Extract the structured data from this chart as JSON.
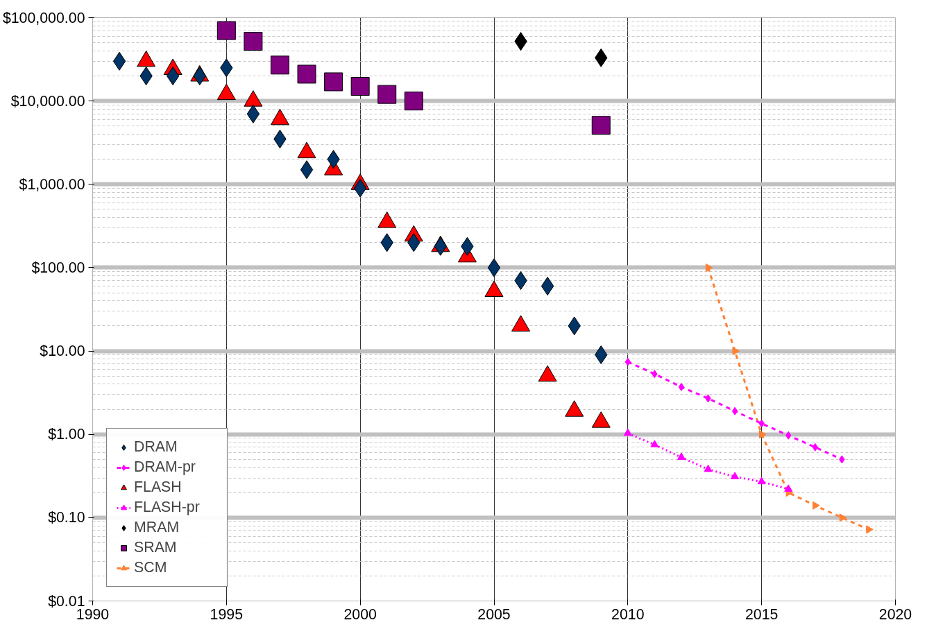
{
  "chart_data": {
    "type": "scatter",
    "log": "y",
    "grid": true,
    "legend": "bottom left",
    "xlim": [
      1990,
      2020
    ],
    "xticks": [
      1990,
      1995,
      2000,
      2005,
      2010,
      2015,
      2020
    ],
    "ylim": [
      0.01,
      100000
    ],
    "yticks": [
      {
        "value": 0.01,
        "label": "$0.01"
      },
      {
        "value": 0.1,
        "label": "$0.10"
      },
      {
        "value": 1,
        "label": "$1.00"
      },
      {
        "value": 10,
        "label": "$10.00"
      },
      {
        "value": 100,
        "label": "$100.00"
      },
      {
        "value": 1000,
        "label": "$1,000.00"
      },
      {
        "value": 10000,
        "label": "$10,000.00"
      },
      {
        "value": 100000,
        "label": "$100,000.00"
      }
    ],
    "series": [
      {
        "name": "DRAM",
        "marker": "diamond",
        "color": "#003366",
        "x": [
          1991,
          1992,
          1993,
          1994,
          1995,
          1996,
          1997,
          1998,
          1999,
          2000,
          2001,
          2002,
          2003,
          2004,
          2005,
          2006,
          2007,
          2008,
          2009
        ],
        "values": [
          30000,
          20000,
          20000,
          20000,
          25000,
          7000,
          3500,
          1500,
          2000,
          900,
          200,
          200,
          180,
          180,
          100,
          70,
          60,
          20,
          9
        ]
      },
      {
        "name": "DRAM-pr",
        "type": "line",
        "marker": "diamond",
        "line_style": "dashed",
        "color": "#ff00ff",
        "x": [
          2010,
          2011,
          2012,
          2013,
          2014,
          2015,
          2016,
          2017,
          2018
        ],
        "values": [
          7.4,
          5.3,
          3.7,
          2.7,
          1.9,
          1.35,
          0.97,
          0.7,
          0.5
        ]
      },
      {
        "name": "FLASH",
        "marker": "triangle",
        "color": "#ff0000",
        "x": [
          1992,
          1993,
          1994,
          1995,
          1996,
          1997,
          1998,
          1999,
          2000,
          2001,
          2002,
          2003,
          2004,
          2005,
          2006,
          2007,
          2008,
          2009
        ],
        "values": [
          30000,
          24000,
          20000,
          12000,
          10000,
          6000,
          2400,
          1500,
          1000,
          350,
          240,
          180,
          135,
          52,
          20,
          5,
          1.9,
          1.4
        ]
      },
      {
        "name": "FLASH-pr",
        "type": "line",
        "marker": "triangle",
        "line_style": "dotted",
        "color": "#ff00ff",
        "x": [
          2010,
          2011,
          2012,
          2013,
          2014,
          2015,
          2016
        ],
        "values": [
          1.03,
          0.75,
          0.53,
          0.38,
          0.31,
          0.27,
          0.22
        ]
      },
      {
        "name": "MRAM",
        "marker": "diamond",
        "color": "#000000",
        "x": [
          2006,
          2009
        ],
        "values": [
          52000,
          33000
        ]
      },
      {
        "name": "SRAM",
        "marker": "square",
        "color": "#800080",
        "x": [
          1995,
          1996,
          1997,
          1998,
          1999,
          2000,
          2001,
          2002,
          2009
        ],
        "values": [
          70000,
          52000,
          27000,
          21000,
          17000,
          15000,
          12000,
          10000,
          5100
        ]
      },
      {
        "name": "SCM",
        "type": "line",
        "marker": "triangle_right",
        "line_style": "dashed",
        "color": "#ff8033",
        "x": [
          2013,
          2014,
          2015,
          2016,
          2017,
          2018,
          2019
        ],
        "values": [
          100,
          10,
          1,
          0.2,
          0.14,
          0.1,
          0.072
        ]
      }
    ]
  }
}
